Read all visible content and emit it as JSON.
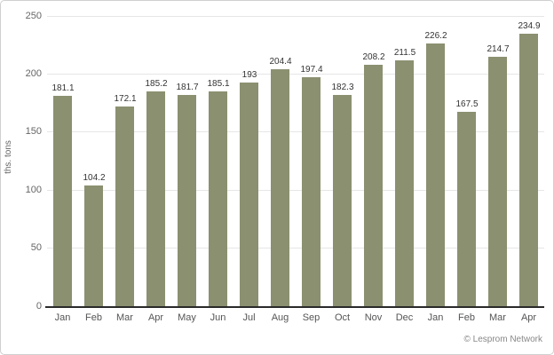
{
  "chart_data": {
    "type": "bar",
    "categories": [
      "Jan",
      "Feb",
      "Mar",
      "Apr",
      "May",
      "Jun",
      "Jul",
      "Aug",
      "Sep",
      "Oct",
      "Nov",
      "Dec",
      "Jan",
      "Feb",
      "Mar",
      "Apr"
    ],
    "values": [
      181.1,
      104.2,
      172.1,
      185.2,
      181.7,
      185.1,
      193,
      204.4,
      197.4,
      182.3,
      208.2,
      211.5,
      226.2,
      167.5,
      214.7,
      234.9
    ],
    "title": "",
    "xlabel": "",
    "ylabel": "ths. tons",
    "ylim": [
      0,
      250
    ],
    "yticks": [
      0,
      50,
      100,
      150,
      200,
      250
    ],
    "grid": true,
    "legend": "none",
    "data_labels": true,
    "bar_color": "#8b9070",
    "gridline_color": "#e6e6e6",
    "axis_line_color": "#2a2a2a"
  },
  "footer": {
    "copyright": "© Lesprom Network"
  }
}
